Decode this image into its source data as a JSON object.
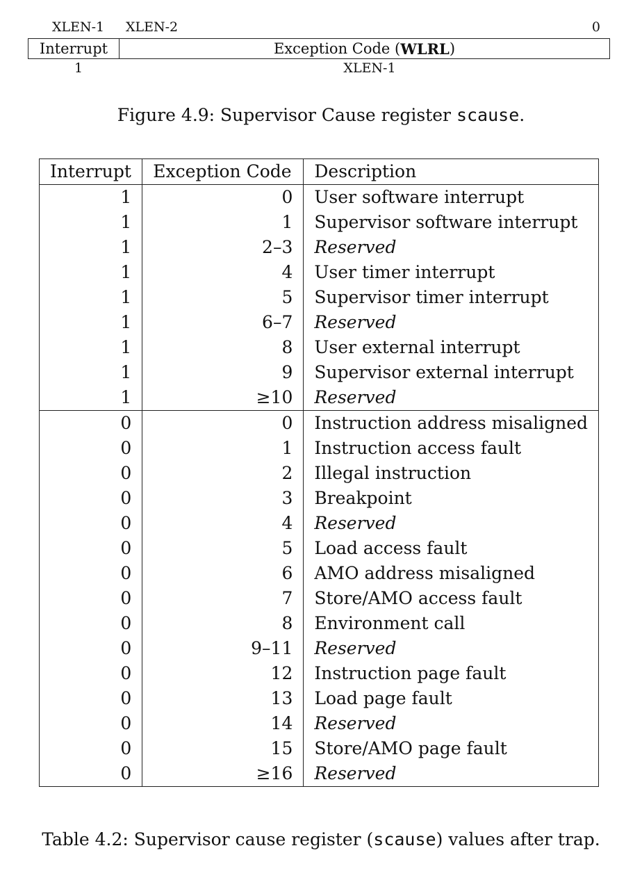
{
  "register": {
    "bit_xlen1": "XLEN-1",
    "bit_xlen2": "XLEN-2",
    "bit_zero": "0",
    "field_interrupt": "Interrupt",
    "field_exception_prefix": "Exception Code (",
    "field_exception_bold": "WLRL",
    "field_exception_suffix": ")",
    "width_interrupt": "1",
    "width_exception": "XLEN-1"
  },
  "figure_caption": {
    "prefix": "Figure 4.9: Supervisor Cause register ",
    "code": "scause",
    "suffix": "."
  },
  "table": {
    "headers": [
      "Interrupt",
      "Exception Code",
      "Description"
    ],
    "rows": [
      {
        "interrupt": "1",
        "code": "0",
        "desc": "User software interrupt",
        "reserved": false
      },
      {
        "interrupt": "1",
        "code": "1",
        "desc": "Supervisor software interrupt",
        "reserved": false
      },
      {
        "interrupt": "1",
        "code": "2–3",
        "desc": "Reserved",
        "reserved": true
      },
      {
        "interrupt": "1",
        "code": "4",
        "desc": "User timer interrupt",
        "reserved": false
      },
      {
        "interrupt": "1",
        "code": "5",
        "desc": "Supervisor timer interrupt",
        "reserved": false
      },
      {
        "interrupt": "1",
        "code": "6–7",
        "desc": "Reserved",
        "reserved": true
      },
      {
        "interrupt": "1",
        "code": "8",
        "desc": "User external interrupt",
        "reserved": false
      },
      {
        "interrupt": "1",
        "code": "9",
        "desc": "Supervisor external interrupt",
        "reserved": false
      },
      {
        "interrupt": "1",
        "code": "≥10",
        "desc": "Reserved",
        "reserved": true
      },
      {
        "interrupt": "0",
        "code": "0",
        "desc": "Instruction address misaligned",
        "reserved": false,
        "group_start": true
      },
      {
        "interrupt": "0",
        "code": "1",
        "desc": "Instruction access fault",
        "reserved": false
      },
      {
        "interrupt": "0",
        "code": "2",
        "desc": "Illegal instruction",
        "reserved": false
      },
      {
        "interrupt": "0",
        "code": "3",
        "desc": "Breakpoint",
        "reserved": false
      },
      {
        "interrupt": "0",
        "code": "4",
        "desc": "Reserved",
        "reserved": true
      },
      {
        "interrupt": "0",
        "code": "5",
        "desc": "Load access fault",
        "reserved": false
      },
      {
        "interrupt": "0",
        "code": "6",
        "desc": "AMO address misaligned",
        "reserved": false
      },
      {
        "interrupt": "0",
        "code": "7",
        "desc": "Store/AMO access fault",
        "reserved": false
      },
      {
        "interrupt": "0",
        "code": "8",
        "desc": "Environment call",
        "reserved": false
      },
      {
        "interrupt": "0",
        "code": "9–11",
        "desc": "Reserved",
        "reserved": true
      },
      {
        "interrupt": "0",
        "code": "12",
        "desc": "Instruction page fault",
        "reserved": false
      },
      {
        "interrupt": "0",
        "code": "13",
        "desc": "Load page fault",
        "reserved": false
      },
      {
        "interrupt": "0",
        "code": "14",
        "desc": "Reserved",
        "reserved": true
      },
      {
        "interrupt": "0",
        "code": "15",
        "desc": "Store/AMO page fault",
        "reserved": false
      },
      {
        "interrupt": "0",
        "code": "≥16",
        "desc": "Reserved",
        "reserved": true
      }
    ]
  },
  "table_caption": {
    "prefix": "Table 4.2: Supervisor cause register (",
    "code": "scause",
    "suffix": ") values after trap."
  }
}
